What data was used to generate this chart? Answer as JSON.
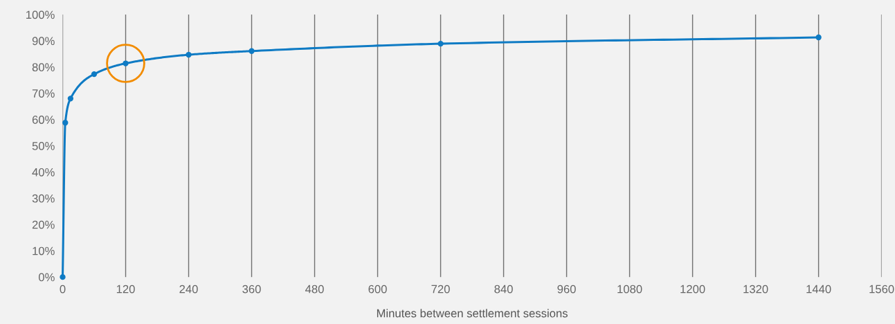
{
  "chart_data": {
    "type": "line",
    "xlabel": "Minutes between settlement sessions",
    "x": [
      0,
      5,
      15,
      60,
      120,
      240,
      360,
      720,
      1440
    ],
    "series": [
      {
        "color": "#0f7bc4",
        "values": [
          0,
          58.8,
          68.0,
          77.3,
          81.4,
          84.7,
          86.1,
          88.9,
          91.3
        ],
        "marker": "circle"
      },
      {
        "type": "scatter",
        "color": "#f28c00",
        "x": [
          120
        ],
        "values": [
          81.4
        ],
        "marker": "circle"
      }
    ],
    "xlim": [
      0,
      1560
    ],
    "xticks": [
      0,
      120,
      240,
      360,
      480,
      600,
      720,
      840,
      960,
      1080,
      1200,
      1320,
      1440,
      1560
    ],
    "ylim": [
      0,
      100
    ],
    "yticks": [
      {
        "value": 0,
        "label": "0%"
      },
      {
        "value": 10,
        "label": "10%"
      },
      {
        "value": 20,
        "label": "20%"
      },
      {
        "value": 30,
        "label": "30%"
      },
      {
        "value": 40,
        "label": "40%"
      },
      {
        "value": 50,
        "label": "50%"
      },
      {
        "value": 60,
        "label": "60%"
      },
      {
        "value": 70,
        "label": "70%"
      },
      {
        "value": 80,
        "label": "80%"
      },
      {
        "value": 90,
        "label": "90%"
      },
      {
        "value": 100,
        "label": "100%"
      }
    ],
    "grid": "x"
  }
}
